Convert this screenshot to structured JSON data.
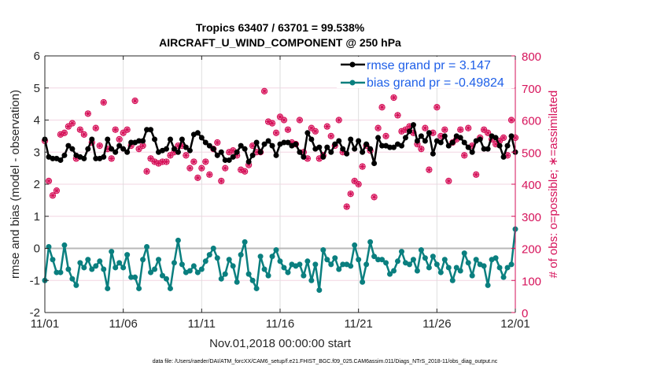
{
  "chart_data": {
    "type": "line",
    "title": "Tropics 63407 / 63701 = 99.538%",
    "subtitle": "AIRCRAFT_U_WIND_COMPONENT @ 250 hPa",
    "xlabel": "Nov.01,2018 00:00:00 start",
    "ylabel": "rmse and bias (model - observation)",
    "y2label": "# of obs: o=possible; ∗=assimilated",
    "footer": "data file: /Users/raeder/DAI/ATM_forcXX/CAM6_setup/f.e21.FHIST_BGC.f09_025.CAM6assim.011/Diags_NTrS_2018-11/obs_diag_output.nc",
    "x_tick_labels": [
      "11/01",
      "11/06",
      "11/11",
      "11/16",
      "11/21",
      "11/26",
      "12/01"
    ],
    "x_range_days": [
      0,
      30
    ],
    "ylim": [
      -2,
      6
    ],
    "y_ticks": [
      "-2",
      "-1",
      "0",
      "1",
      "2",
      "3",
      "4",
      "5",
      "6"
    ],
    "y2lim": [
      0,
      800
    ],
    "y2_ticks": [
      "0",
      "100",
      "200",
      "300",
      "400",
      "500",
      "600",
      "700",
      "800"
    ],
    "grid": "horizontal on right-axis ticks; vertical at x ticks",
    "zero_line": 0,
    "legend_position": "top-right",
    "legend": [
      {
        "label": "rmse grand pr = 3.147",
        "color": "#000000"
      },
      {
        "label": "bias grand pr = -0.49824",
        "color": "#0a7f7f"
      }
    ],
    "colors": {
      "rmse": "#000000",
      "bias": "#0a7f7f",
      "obs": "#d6125a",
      "zero": "#b8b8b8",
      "grid": "#f2d5e2"
    },
    "series": [
      {
        "name": "rmse",
        "axis": "left",
        "values": [
          3.4,
          2.85,
          2.8,
          2.8,
          2.75,
          2.9,
          3.2,
          3.1,
          2.9,
          2.85,
          2.8,
          3.1,
          3.4,
          2.8,
          2.8,
          2.85,
          3.4,
          3.1,
          3.0,
          3.2,
          3.1,
          3.0,
          3.3,
          3.3,
          3.35,
          3.35,
          3.7,
          3.7,
          3.4,
          3.0,
          3.05,
          3.1,
          3.4,
          3.1,
          3.0,
          3.4,
          3.15,
          3.05,
          3.55,
          3.6,
          3.45,
          3.3,
          3.2,
          3.1,
          2.9,
          3.0,
          2.75,
          2.75,
          2.85,
          3.0,
          3.2,
          3.1,
          2.7,
          2.9,
          3.3,
          3.0,
          3.25,
          3.35,
          3.2,
          2.9,
          3.25,
          3.3,
          3.3,
          3.2,
          3.25,
          3.0,
          2.85,
          3.6,
          3.4,
          3.1,
          3.15,
          2.85,
          3.15,
          3.0,
          3.25,
          3.35,
          3.1,
          2.95,
          3.4,
          3.1,
          3.35,
          3.0,
          3.25,
          3.1,
          2.65,
          3.45,
          3.2,
          3.2,
          3.15,
          3.15,
          3.25,
          3.2,
          3.45,
          3.65,
          3.85,
          3.35,
          3.5,
          3.35,
          3.6,
          2.95,
          3.35,
          3.3,
          3.5,
          3.2,
          3.3,
          3.5,
          3.45,
          3.3,
          3.15,
          3.0,
          3.35,
          3.4,
          3.1,
          3.1,
          3.5,
          3.45,
          3.2,
          2.85,
          3.2,
          3.5,
          3.0
        ]
      },
      {
        "name": "bias",
        "axis": "left",
        "values": [
          -1.0,
          0.05,
          -0.35,
          -0.75,
          -0.75,
          0.1,
          -0.65,
          -0.95,
          -1.15,
          -0.45,
          -0.6,
          -0.35,
          -0.65,
          -0.55,
          -0.4,
          -0.65,
          -1.25,
          -0.1,
          -0.6,
          -0.45,
          -0.6,
          -0.2,
          -0.9,
          -0.9,
          -1.25,
          -0.35,
          0.05,
          -0.75,
          -0.65,
          -0.35,
          -0.85,
          -0.95,
          -1.25,
          -0.45,
          0.25,
          -0.5,
          -0.75,
          -0.7,
          -0.55,
          -0.75,
          -0.65,
          -0.4,
          -0.2,
          0.0,
          -0.3,
          -0.95,
          -0.8,
          -0.35,
          -0.55,
          -1.05,
          -0.2,
          0.2,
          -0.8,
          -1.0,
          -1.25,
          -0.25,
          -0.65,
          -0.85,
          -0.25,
          -0.05,
          -0.4,
          -0.6,
          -0.75,
          -0.5,
          -0.55,
          -0.5,
          -0.85,
          -0.4,
          -1.0,
          -0.5,
          -1.3,
          -0.05,
          -0.35,
          -0.5,
          -0.3,
          -0.65,
          -0.5,
          -0.5,
          -0.55,
          0.1,
          -0.35,
          -1.05,
          -0.5,
          0.2,
          -0.25,
          -0.35,
          -0.35,
          -0.45,
          -0.8,
          -0.7,
          -0.4,
          -0.1,
          -0.45,
          -0.5,
          -0.35,
          -0.7,
          -0.05,
          -0.3,
          -0.6,
          -0.25,
          -0.5,
          -0.75,
          -0.35,
          -0.6,
          -1.0,
          -0.6,
          -0.7,
          -0.15,
          -0.45,
          -0.85,
          -0.35,
          -0.5,
          -0.55,
          -1.15,
          -0.35,
          -0.3,
          -0.6,
          -0.9,
          -0.6,
          -0.5,
          0.6
        ]
      },
      {
        "name": "obs_count",
        "axis": "right",
        "values": [
          535,
          410,
          365,
          380,
          555,
          560,
          580,
          590,
          480,
          570,
          555,
          620,
          530,
          575,
          520,
          655,
          510,
          480,
          570,
          540,
          560,
          570,
          520,
          660,
          510,
          520,
          440,
          480,
          470,
          465,
          470,
          470,
          490,
          500,
          520,
          520,
          490,
          450,
          470,
          420,
          450,
          470,
          430,
          510,
          530,
          410,
          450,
          500,
          505,
          490,
          445,
          440,
          460,
          520,
          500,
          500,
          690,
          595,
          590,
          560,
          610,
          600,
          570,
          530,
          525,
          600,
          500,
          480,
          575,
          565,
          480,
          490,
          580,
          550,
          520,
          600,
          500,
          330,
          370,
          410,
          400,
          455,
          520,
          505,
          360,
          575,
          640,
          550,
          720,
          670,
          615,
          565,
          570,
          580,
          560,
          525,
          510,
          575,
          445,
          560,
          640,
          550,
          570,
          410,
          530,
          540,
          570,
          490,
          575,
          520,
          430,
          545,
          570,
          560,
          540,
          525,
          535,
          545,
          490,
          600,
          545
        ]
      }
    ]
  }
}
